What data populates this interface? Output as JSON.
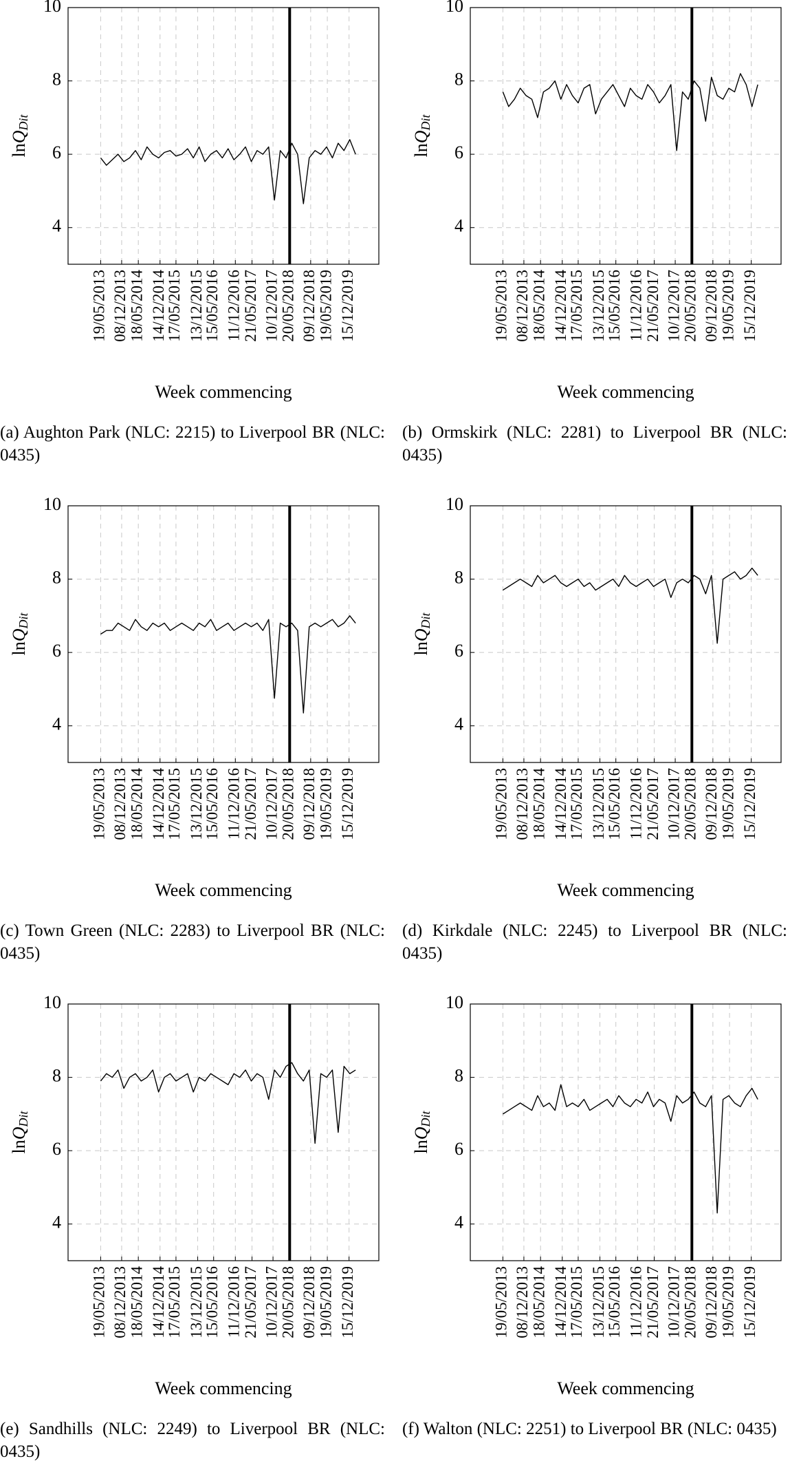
{
  "chart_data": [
    {
      "type": "line",
      "ylabel": [
        "ln",
        "Q",
        "Dit"
      ],
      "xlabel": "Week commencing",
      "caption": "(a) Aughton Park (NLC: 2215) to Liverpool BR (NLC: 0435)",
      "color": "#000000",
      "grid": true,
      "vline": "2018-05-20",
      "xlim": [
        "2012-07-08",
        "2020-09-28"
      ],
      "ylim": [
        3,
        10
      ],
      "yticks": [
        4,
        6,
        8,
        10
      ],
      "xticks": [
        {
          "value": "2013-05-19",
          "label": "19/05/2013"
        },
        {
          "value": "2013-12-08",
          "label": "08/12/2013"
        },
        {
          "value": "2014-05-18",
          "label": "18/05/2014"
        },
        {
          "value": "2014-12-14",
          "label": "14/12/2014"
        },
        {
          "value": "2015-05-17",
          "label": "17/05/2015"
        },
        {
          "value": "2015-12-13",
          "label": "13/12/2015"
        },
        {
          "value": "2016-05-15",
          "label": "15/05/2016"
        },
        {
          "value": "2016-12-11",
          "label": "11/12/2016"
        },
        {
          "value": "2017-05-21",
          "label": "21/05/2017"
        },
        {
          "value": "2017-12-10",
          "label": "10/12/2017"
        },
        {
          "value": "2018-05-20",
          "label": "20/05/2018"
        },
        {
          "value": "2018-12-09",
          "label": "09/12/2018"
        },
        {
          "value": "2019-05-19",
          "label": "19/05/2019"
        },
        {
          "value": "2019-12-15",
          "label": "15/12/2019"
        }
      ],
      "x": [
        "2013-05-19",
        "2013-07-14",
        "2013-09-08",
        "2013-11-03",
        "2013-12-29",
        "2014-02-23",
        "2014-04-20",
        "2014-06-15",
        "2014-08-10",
        "2014-10-05",
        "2014-11-30",
        "2015-01-25",
        "2015-03-22",
        "2015-05-17",
        "2015-07-12",
        "2015-09-06",
        "2015-11-01",
        "2015-12-27",
        "2016-02-21",
        "2016-04-17",
        "2016-06-12",
        "2016-08-07",
        "2016-10-02",
        "2016-11-27",
        "2017-01-22",
        "2017-03-19",
        "2017-05-14",
        "2017-07-09",
        "2017-09-03",
        "2017-10-29",
        "2017-12-24",
        "2018-02-18",
        "2018-04-15",
        "2018-06-10",
        "2018-08-05",
        "2018-09-30",
        "2018-11-25",
        "2019-01-20",
        "2019-03-17",
        "2019-05-12",
        "2019-07-07",
        "2019-09-01",
        "2019-10-27",
        "2019-12-22",
        "2020-02-16"
      ],
      "values": [
        5.9,
        5.7,
        5.85,
        6.0,
        5.8,
        5.9,
        6.1,
        5.85,
        6.2,
        6.0,
        5.9,
        6.05,
        6.1,
        5.95,
        6.0,
        6.15,
        5.9,
        6.2,
        5.8,
        6.0,
        6.1,
        5.9,
        6.15,
        5.85,
        6.0,
        6.2,
        5.8,
        6.1,
        6.0,
        6.2,
        4.75,
        6.1,
        5.9,
        6.3,
        6.0,
        4.65,
        5.9,
        6.1,
        6.0,
        6.2,
        5.9,
        6.3,
        6.1,
        6.4,
        6.0
      ]
    },
    {
      "type": "line",
      "ylabel": [
        "ln",
        "Q",
        "Dit"
      ],
      "xlabel": "Week commencing",
      "caption": "(b) Ormskirk (NLC: 2281) to Liverpool BR (NLC: 0435)",
      "color": "#000000",
      "grid": true,
      "vline": "2018-05-20",
      "xlim": [
        "2012-07-08",
        "2020-09-28"
      ],
      "ylim": [
        3,
        10
      ],
      "yticks": [
        4,
        6,
        8,
        10
      ],
      "xticks": [
        {
          "value": "2013-05-19",
          "label": "19/05/2013"
        },
        {
          "value": "2013-12-08",
          "label": "08/12/2013"
        },
        {
          "value": "2014-05-18",
          "label": "18/05/2014"
        },
        {
          "value": "2014-12-14",
          "label": "14/12/2014"
        },
        {
          "value": "2015-05-17",
          "label": "17/05/2015"
        },
        {
          "value": "2015-12-13",
          "label": "13/12/2015"
        },
        {
          "value": "2016-05-15",
          "label": "15/05/2016"
        },
        {
          "value": "2016-12-11",
          "label": "11/12/2016"
        },
        {
          "value": "2017-05-21",
          "label": "21/05/2017"
        },
        {
          "value": "2017-12-10",
          "label": "10/12/2017"
        },
        {
          "value": "2018-05-20",
          "label": "20/05/2018"
        },
        {
          "value": "2018-12-09",
          "label": "09/12/2018"
        },
        {
          "value": "2019-05-19",
          "label": "19/05/2019"
        },
        {
          "value": "2019-12-15",
          "label": "15/12/2019"
        }
      ],
      "x": [
        "2013-05-19",
        "2013-07-14",
        "2013-09-08",
        "2013-11-03",
        "2013-12-29",
        "2014-02-23",
        "2014-04-20",
        "2014-06-15",
        "2014-08-10",
        "2014-10-05",
        "2014-11-30",
        "2015-01-25",
        "2015-03-22",
        "2015-05-17",
        "2015-07-12",
        "2015-09-06",
        "2015-11-01",
        "2015-12-27",
        "2016-02-21",
        "2016-04-17",
        "2016-06-12",
        "2016-08-07",
        "2016-10-02",
        "2016-11-27",
        "2017-01-22",
        "2017-03-19",
        "2017-05-14",
        "2017-07-09",
        "2017-09-03",
        "2017-10-29",
        "2017-12-24",
        "2018-02-18",
        "2018-04-15",
        "2018-06-10",
        "2018-08-05",
        "2018-09-30",
        "2018-11-25",
        "2019-01-20",
        "2019-03-17",
        "2019-05-12",
        "2019-07-07",
        "2019-09-01",
        "2019-10-27",
        "2019-12-22",
        "2020-02-16"
      ],
      "values": [
        7.7,
        7.3,
        7.5,
        7.8,
        7.6,
        7.5,
        7.0,
        7.7,
        7.8,
        8.0,
        7.5,
        7.9,
        7.6,
        7.4,
        7.8,
        7.9,
        7.1,
        7.5,
        7.7,
        7.9,
        7.6,
        7.3,
        7.8,
        7.6,
        7.5,
        7.9,
        7.7,
        7.4,
        7.6,
        7.9,
        6.1,
        7.7,
        7.5,
        8.0,
        7.8,
        6.9,
        8.1,
        7.6,
        7.5,
        7.8,
        7.7,
        8.2,
        7.9,
        7.3,
        7.9
      ]
    },
    {
      "type": "line",
      "ylabel": [
        "ln",
        "Q",
        "Dit"
      ],
      "xlabel": "Week commencing",
      "caption": "(c) Town Green (NLC: 2283) to Liverpool BR (NLC: 0435)",
      "color": "#000000",
      "grid": true,
      "vline": "2018-05-20",
      "xlim": [
        "2012-07-08",
        "2020-09-28"
      ],
      "ylim": [
        3,
        10
      ],
      "yticks": [
        4,
        6,
        8,
        10
      ],
      "xticks": [
        {
          "value": "2013-05-19",
          "label": "19/05/2013"
        },
        {
          "value": "2013-12-08",
          "label": "08/12/2013"
        },
        {
          "value": "2014-05-18",
          "label": "18/05/2014"
        },
        {
          "value": "2014-12-14",
          "label": "14/12/2014"
        },
        {
          "value": "2015-05-17",
          "label": "17/05/2015"
        },
        {
          "value": "2015-12-13",
          "label": "13/12/2015"
        },
        {
          "value": "2016-05-15",
          "label": "15/05/2016"
        },
        {
          "value": "2016-12-11",
          "label": "11/12/2016"
        },
        {
          "value": "2017-05-21",
          "label": "21/05/2017"
        },
        {
          "value": "2017-12-10",
          "label": "10/12/2017"
        },
        {
          "value": "2018-05-20",
          "label": "20/05/2018"
        },
        {
          "value": "2018-12-09",
          "label": "09/12/2018"
        },
        {
          "value": "2019-05-19",
          "label": "19/05/2019"
        },
        {
          "value": "2019-12-15",
          "label": "15/12/2019"
        }
      ],
      "x": [
        "2013-05-19",
        "2013-07-14",
        "2013-09-08",
        "2013-11-03",
        "2013-12-29",
        "2014-02-23",
        "2014-04-20",
        "2014-06-15",
        "2014-08-10",
        "2014-10-05",
        "2014-11-30",
        "2015-01-25",
        "2015-03-22",
        "2015-05-17",
        "2015-07-12",
        "2015-09-06",
        "2015-11-01",
        "2015-12-27",
        "2016-02-21",
        "2016-04-17",
        "2016-06-12",
        "2016-08-07",
        "2016-10-02",
        "2016-11-27",
        "2017-01-22",
        "2017-03-19",
        "2017-05-14",
        "2017-07-09",
        "2017-09-03",
        "2017-10-29",
        "2017-12-24",
        "2018-02-18",
        "2018-04-15",
        "2018-06-10",
        "2018-08-05",
        "2018-09-30",
        "2018-11-25",
        "2019-01-20",
        "2019-03-17",
        "2019-05-12",
        "2019-07-07",
        "2019-09-01",
        "2019-10-27",
        "2019-12-22",
        "2020-02-16"
      ],
      "values": [
        6.5,
        6.6,
        6.6,
        6.8,
        6.7,
        6.6,
        6.9,
        6.7,
        6.6,
        6.8,
        6.7,
        6.8,
        6.6,
        6.7,
        6.8,
        6.7,
        6.6,
        6.8,
        6.7,
        6.9,
        6.6,
        6.7,
        6.8,
        6.6,
        6.7,
        6.8,
        6.7,
        6.8,
        6.6,
        6.9,
        4.75,
        6.8,
        6.7,
        6.8,
        6.6,
        4.35,
        6.7,
        6.8,
        6.7,
        6.8,
        6.9,
        6.7,
        6.8,
        7.0,
        6.8
      ]
    },
    {
      "type": "line",
      "ylabel": [
        "ln",
        "Q",
        "Dit"
      ],
      "xlabel": "Week commencing",
      "caption": "(d) Kirkdale (NLC: 2245) to Liverpool BR (NLC: 0435)",
      "color": "#000000",
      "grid": true,
      "vline": "2018-05-20",
      "xlim": [
        "2012-07-08",
        "2020-09-28"
      ],
      "ylim": [
        3,
        10
      ],
      "yticks": [
        4,
        6,
        8,
        10
      ],
      "xticks": [
        {
          "value": "2013-05-19",
          "label": "19/05/2013"
        },
        {
          "value": "2013-12-08",
          "label": "08/12/2013"
        },
        {
          "value": "2014-05-18",
          "label": "18/05/2014"
        },
        {
          "value": "2014-12-14",
          "label": "14/12/2014"
        },
        {
          "value": "2015-05-17",
          "label": "17/05/2015"
        },
        {
          "value": "2015-12-13",
          "label": "13/12/2015"
        },
        {
          "value": "2016-05-15",
          "label": "15/05/2016"
        },
        {
          "value": "2016-12-11",
          "label": "11/12/2016"
        },
        {
          "value": "2017-05-21",
          "label": "21/05/2017"
        },
        {
          "value": "2017-12-10",
          "label": "10/12/2017"
        },
        {
          "value": "2018-05-20",
          "label": "20/05/2018"
        },
        {
          "value": "2018-12-09",
          "label": "09/12/2018"
        },
        {
          "value": "2019-05-19",
          "label": "19/05/2019"
        },
        {
          "value": "2019-12-15",
          "label": "15/12/2019"
        }
      ],
      "x": [
        "2013-05-19",
        "2013-07-14",
        "2013-09-08",
        "2013-11-03",
        "2013-12-29",
        "2014-02-23",
        "2014-04-20",
        "2014-06-15",
        "2014-08-10",
        "2014-10-05",
        "2014-11-30",
        "2015-01-25",
        "2015-03-22",
        "2015-05-17",
        "2015-07-12",
        "2015-09-06",
        "2015-11-01",
        "2015-12-27",
        "2016-02-21",
        "2016-04-17",
        "2016-06-12",
        "2016-08-07",
        "2016-10-02",
        "2016-11-27",
        "2017-01-22",
        "2017-03-19",
        "2017-05-14",
        "2017-07-09",
        "2017-09-03",
        "2017-10-29",
        "2017-12-24",
        "2018-02-18",
        "2018-04-15",
        "2018-06-10",
        "2018-08-05",
        "2018-09-30",
        "2018-11-25",
        "2019-01-20",
        "2019-03-17",
        "2019-05-12",
        "2019-07-07",
        "2019-09-01",
        "2019-10-27",
        "2019-12-22",
        "2020-02-16"
      ],
      "values": [
        7.7,
        7.8,
        7.9,
        8.0,
        7.9,
        7.8,
        8.1,
        7.9,
        8.0,
        8.1,
        7.9,
        7.8,
        7.9,
        8.0,
        7.8,
        7.9,
        7.7,
        7.8,
        7.9,
        8.0,
        7.8,
        8.1,
        7.9,
        7.8,
        7.9,
        8.0,
        7.8,
        7.9,
        8.0,
        7.5,
        7.9,
        8.0,
        7.9,
        8.1,
        8.0,
        7.6,
        8.1,
        6.25,
        8.0,
        8.1,
        8.2,
        8.0,
        8.1,
        8.3,
        8.1
      ]
    },
    {
      "type": "line",
      "ylabel": [
        "ln",
        "Q",
        "Dit"
      ],
      "xlabel": "Week commencing",
      "caption": "(e) Sandhills (NLC: 2249) to Liverpool BR (NLC: 0435)",
      "color": "#000000",
      "grid": true,
      "vline": "2018-05-20",
      "xlim": [
        "2012-07-08",
        "2020-09-28"
      ],
      "ylim": [
        3,
        10
      ],
      "yticks": [
        4,
        6,
        8,
        10
      ],
      "xticks": [
        {
          "value": "2013-05-19",
          "label": "19/05/2013"
        },
        {
          "value": "2013-12-08",
          "label": "08/12/2013"
        },
        {
          "value": "2014-05-18",
          "label": "18/05/2014"
        },
        {
          "value": "2014-12-14",
          "label": "14/12/2014"
        },
        {
          "value": "2015-05-17",
          "label": "17/05/2015"
        },
        {
          "value": "2015-12-13",
          "label": "13/12/2015"
        },
        {
          "value": "2016-05-15",
          "label": "15/05/2016"
        },
        {
          "value": "2016-12-11",
          "label": "11/12/2016"
        },
        {
          "value": "2017-05-21",
          "label": "21/05/2017"
        },
        {
          "value": "2017-12-10",
          "label": "10/12/2017"
        },
        {
          "value": "2018-05-20",
          "label": "20/05/2018"
        },
        {
          "value": "2018-12-09",
          "label": "09/12/2018"
        },
        {
          "value": "2019-05-19",
          "label": "19/05/2019"
        },
        {
          "value": "2019-12-15",
          "label": "15/12/2019"
        }
      ],
      "x": [
        "2013-05-19",
        "2013-07-14",
        "2013-09-08",
        "2013-11-03",
        "2013-12-29",
        "2014-02-23",
        "2014-04-20",
        "2014-06-15",
        "2014-08-10",
        "2014-10-05",
        "2014-11-30",
        "2015-01-25",
        "2015-03-22",
        "2015-05-17",
        "2015-07-12",
        "2015-09-06",
        "2015-11-01",
        "2015-12-27",
        "2016-02-21",
        "2016-04-17",
        "2016-06-12",
        "2016-08-07",
        "2016-10-02",
        "2016-11-27",
        "2017-01-22",
        "2017-03-19",
        "2017-05-14",
        "2017-07-09",
        "2017-09-03",
        "2017-10-29",
        "2017-12-24",
        "2018-02-18",
        "2018-04-15",
        "2018-06-10",
        "2018-08-05",
        "2018-09-30",
        "2018-11-25",
        "2019-01-20",
        "2019-03-17",
        "2019-05-12",
        "2019-07-07",
        "2019-09-01",
        "2019-10-27",
        "2019-12-22",
        "2020-02-16"
      ],
      "values": [
        7.9,
        8.1,
        8.0,
        8.2,
        7.7,
        8.0,
        8.1,
        7.9,
        8.0,
        8.2,
        7.6,
        8.0,
        8.1,
        7.9,
        8.0,
        8.1,
        7.6,
        8.0,
        7.9,
        8.1,
        8.0,
        7.9,
        7.8,
        8.1,
        8.0,
        8.2,
        7.9,
        8.1,
        8.0,
        7.4,
        8.2,
        8.0,
        8.3,
        8.4,
        8.1,
        7.9,
        8.2,
        6.2,
        8.1,
        8.0,
        8.2,
        6.5,
        8.3,
        8.1,
        8.2
      ]
    },
    {
      "type": "line",
      "ylabel": [
        "ln",
        "Q",
        "Dit"
      ],
      "xlabel": "Week commencing",
      "caption": "(f) Walton (NLC: 2251) to Liverpool BR (NLC: 0435)",
      "color": "#000000",
      "grid": true,
      "vline": "2018-05-20",
      "xlim": [
        "2012-07-08",
        "2020-09-28"
      ],
      "ylim": [
        3,
        10
      ],
      "yticks": [
        4,
        6,
        8,
        10
      ],
      "xticks": [
        {
          "value": "2013-05-19",
          "label": "19/05/2013"
        },
        {
          "value": "2013-12-08",
          "label": "08/12/2013"
        },
        {
          "value": "2014-05-18",
          "label": "18/05/2014"
        },
        {
          "value": "2014-12-14",
          "label": "14/12/2014"
        },
        {
          "value": "2015-05-17",
          "label": "17/05/2015"
        },
        {
          "value": "2015-12-13",
          "label": "13/12/2015"
        },
        {
          "value": "2016-05-15",
          "label": "15/05/2016"
        },
        {
          "value": "2016-12-11",
          "label": "11/12/2016"
        },
        {
          "value": "2017-05-21",
          "label": "21/05/2017"
        },
        {
          "value": "2017-12-10",
          "label": "10/12/2017"
        },
        {
          "value": "2018-05-20",
          "label": "20/05/2018"
        },
        {
          "value": "2018-12-09",
          "label": "09/12/2018"
        },
        {
          "value": "2019-05-19",
          "label": "19/05/2019"
        },
        {
          "value": "2019-12-15",
          "label": "15/12/2019"
        }
      ],
      "x": [
        "2013-05-19",
        "2013-07-14",
        "2013-09-08",
        "2013-11-03",
        "2013-12-29",
        "2014-02-23",
        "2014-04-20",
        "2014-06-15",
        "2014-08-10",
        "2014-10-05",
        "2014-11-30",
        "2015-01-25",
        "2015-03-22",
        "2015-05-17",
        "2015-07-12",
        "2015-09-06",
        "2015-11-01",
        "2015-12-27",
        "2016-02-21",
        "2016-04-17",
        "2016-06-12",
        "2016-08-07",
        "2016-10-02",
        "2016-11-27",
        "2017-01-22",
        "2017-03-19",
        "2017-05-14",
        "2017-07-09",
        "2017-09-03",
        "2017-10-29",
        "2017-12-24",
        "2018-02-18",
        "2018-04-15",
        "2018-06-10",
        "2018-08-05",
        "2018-09-30",
        "2018-11-25",
        "2019-01-20",
        "2019-03-17",
        "2019-05-12",
        "2019-07-07",
        "2019-09-01",
        "2019-10-27",
        "2019-12-22",
        "2020-02-16"
      ],
      "values": [
        7.0,
        7.1,
        7.2,
        7.3,
        7.2,
        7.1,
        7.5,
        7.2,
        7.3,
        7.1,
        7.8,
        7.2,
        7.3,
        7.2,
        7.4,
        7.1,
        7.2,
        7.3,
        7.4,
        7.2,
        7.5,
        7.3,
        7.2,
        7.4,
        7.3,
        7.6,
        7.2,
        7.4,
        7.3,
        6.8,
        7.5,
        7.3,
        7.4,
        7.6,
        7.3,
        7.2,
        7.5,
        4.3,
        7.4,
        7.5,
        7.3,
        7.2,
        7.5,
        7.7,
        7.4
      ]
    }
  ]
}
